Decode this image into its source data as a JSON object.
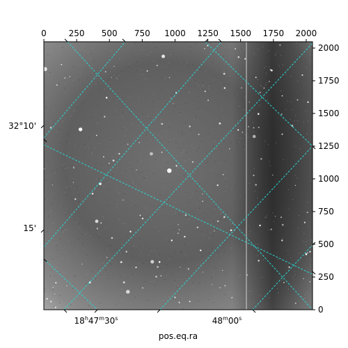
{
  "figure": {
    "xlabel": "pos.eq.ra",
    "pixel_x_ticks": [
      "0",
      "250",
      "500",
      "750",
      "1000",
      "1250",
      "1500",
      "1750",
      "2000"
    ],
    "pixel_y_ticks": [
      "0",
      "250",
      "500",
      "750",
      "1000",
      "1250",
      "1500",
      "1750",
      "2000"
    ],
    "ra_ticks": [
      {
        "hours": "18",
        "h": "h",
        "minutes": "47",
        "m": "m",
        "seconds": "30",
        "s": "s"
      },
      {
        "minutes": "48",
        "m": "m",
        "seconds": "00",
        "s": "s"
      }
    ],
    "dec_ticks": [
      "32°10'",
      "15'"
    ],
    "colors": {
      "grid": "#2ad4d4",
      "image_background": "#6e6e6e",
      "frame": "#000000"
    }
  }
}
